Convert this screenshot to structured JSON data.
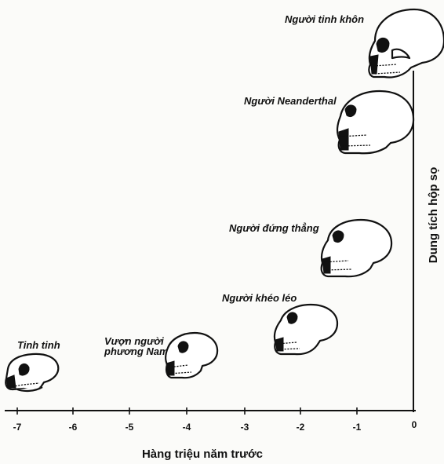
{
  "labels": {
    "sapiens": "Người tinh khôn",
    "neanderthal": "Người Neanderthal",
    "erectus": "Người đứng thẳng",
    "habilis": "Người khéo léo",
    "australopithecus_line1": "Vượn người",
    "australopithecus_line2": "phương Nam",
    "chimpanzee": "Tinh tinh"
  },
  "axes": {
    "x_title": "Hàng triệu năm trước",
    "y_title": "Dung tích hộp sọ",
    "x_ticks": [
      "-7",
      "-6",
      "-5",
      "-4",
      "-3",
      "-2",
      "-1",
      "0"
    ]
  },
  "icons": {
    "skulls": [
      "chimpanzee-skull-icon",
      "australopithecus-skull-icon",
      "habilis-skull-icon",
      "erectus-skull-icon",
      "neanderthal-skull-icon",
      "sapiens-skull-icon"
    ]
  }
}
